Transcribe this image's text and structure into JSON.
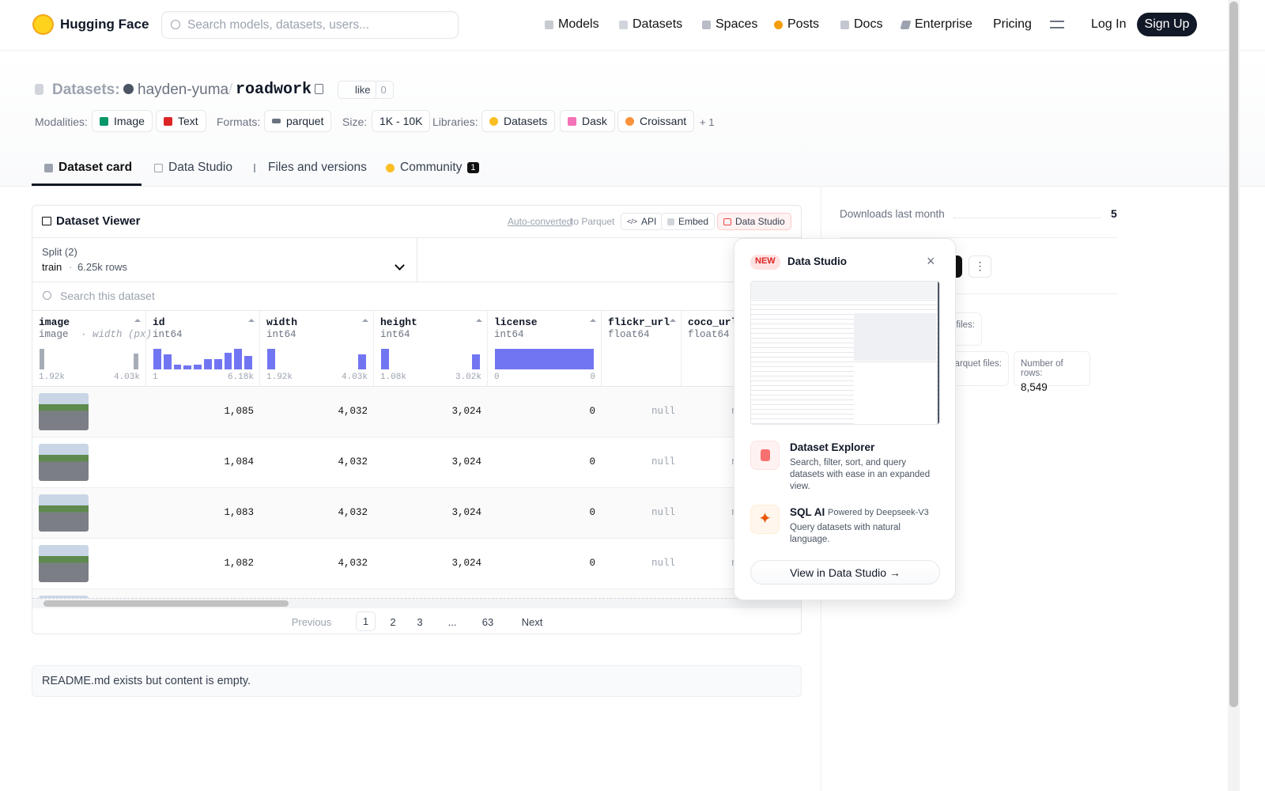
{
  "header": {
    "brand": "Hugging Face",
    "search_placeholder": "Search models, datasets, users...",
    "nav": [
      "Models",
      "Datasets",
      "Spaces",
      "Posts",
      "Docs",
      "Enterprise",
      "Pricing"
    ],
    "login": "Log In",
    "signup": "Sign Up"
  },
  "repo": {
    "kind": "Datasets:",
    "owner": "hayden-yuma",
    "separator": "/",
    "name": "roadwork",
    "like": "like",
    "likes": "0"
  },
  "tags": {
    "modalities_label": "Modalities:",
    "modalities": [
      "Image",
      "Text"
    ],
    "formats_label": "Formats:",
    "formats": [
      "parquet"
    ],
    "size_label": "Size:",
    "size": "1K - 10K",
    "libraries_label": "Libraries:",
    "libraries": [
      "Datasets",
      "Dask",
      "Croissant"
    ],
    "more": "+ 1"
  },
  "tabs": {
    "items": [
      "Dataset card",
      "Data Studio",
      "Files and versions",
      "Community"
    ],
    "community_count": "1"
  },
  "viewer": {
    "title": "Dataset Viewer",
    "auto_converted": "Auto-converted",
    "to_parquet": "to Parquet",
    "buttons": [
      "API",
      "Embed",
      "Data Studio"
    ],
    "split_label": "Split (2)",
    "split": "train",
    "dot": "·",
    "row_count": "6.25k rows",
    "search": "Search this dataset",
    "columns": [
      {
        "name": "image",
        "type": "image",
        "subtype": "· width (px)",
        "min": "1.92k",
        "max": "4.03k",
        "hist": [
          90,
          0,
          0,
          0,
          0,
          0,
          0,
          0,
          0,
          0,
          0,
          0,
          0,
          0,
          70
        ]
      },
      {
        "name": "id",
        "type": "int64",
        "min": "1",
        "max": "6.18k",
        "hist": [
          100,
          75,
          25,
          18,
          25,
          50,
          50,
          80,
          100,
          65
        ]
      },
      {
        "name": "width",
        "type": "int64",
        "min": "1.92k",
        "max": "4.03k",
        "hist": [
          100,
          0,
          0,
          0,
          0,
          0,
          0,
          0,
          0,
          75
        ]
      },
      {
        "name": "height",
        "type": "int64",
        "min": "1.08k",
        "max": "3.02k",
        "hist": [
          100,
          0,
          0,
          0,
          0,
          0,
          0,
          0,
          0,
          75
        ]
      },
      {
        "name": "license",
        "type": "int64",
        "min": "0",
        "max": "0",
        "hist": [
          100
        ]
      },
      {
        "name": "flickr_url",
        "type": "float64"
      },
      {
        "name": "coco_url",
        "type": "float64"
      }
    ],
    "rows": [
      [
        "1,085",
        "4,032",
        "3,024",
        "0",
        "null",
        "null"
      ],
      [
        "1,084",
        "4,032",
        "3,024",
        "0",
        "null",
        "null"
      ],
      [
        "1,083",
        "4,032",
        "3,024",
        "0",
        "null",
        "null"
      ],
      [
        "1,082",
        "4,032",
        "3,024",
        "0",
        "null",
        "null"
      ]
    ],
    "pagination": {
      "previous": "Previous",
      "pages": [
        "1",
        "2",
        "3",
        "...",
        "63"
      ],
      "next": "Next"
    }
  },
  "readme": "README.md exists but content is empty.",
  "sidebar": {
    "downloads_label": "Downloads last month",
    "downloads": "5",
    "card1_label": "files:",
    "card2_label": "arquet files:",
    "rows_label": "Number of rows:",
    "rows_value": "8,549"
  },
  "popup": {
    "badge": "NEW",
    "title": "Data Studio",
    "features": [
      {
        "title": "Dataset Explorer",
        "text": "Search, filter, sort, and query datasets with ease in an expanded view."
      },
      {
        "title": "SQL AI",
        "note": "Powered by Deepseek-V3",
        "text": "Query datasets with natural language."
      }
    ],
    "cta": "View in Data Studio →"
  }
}
